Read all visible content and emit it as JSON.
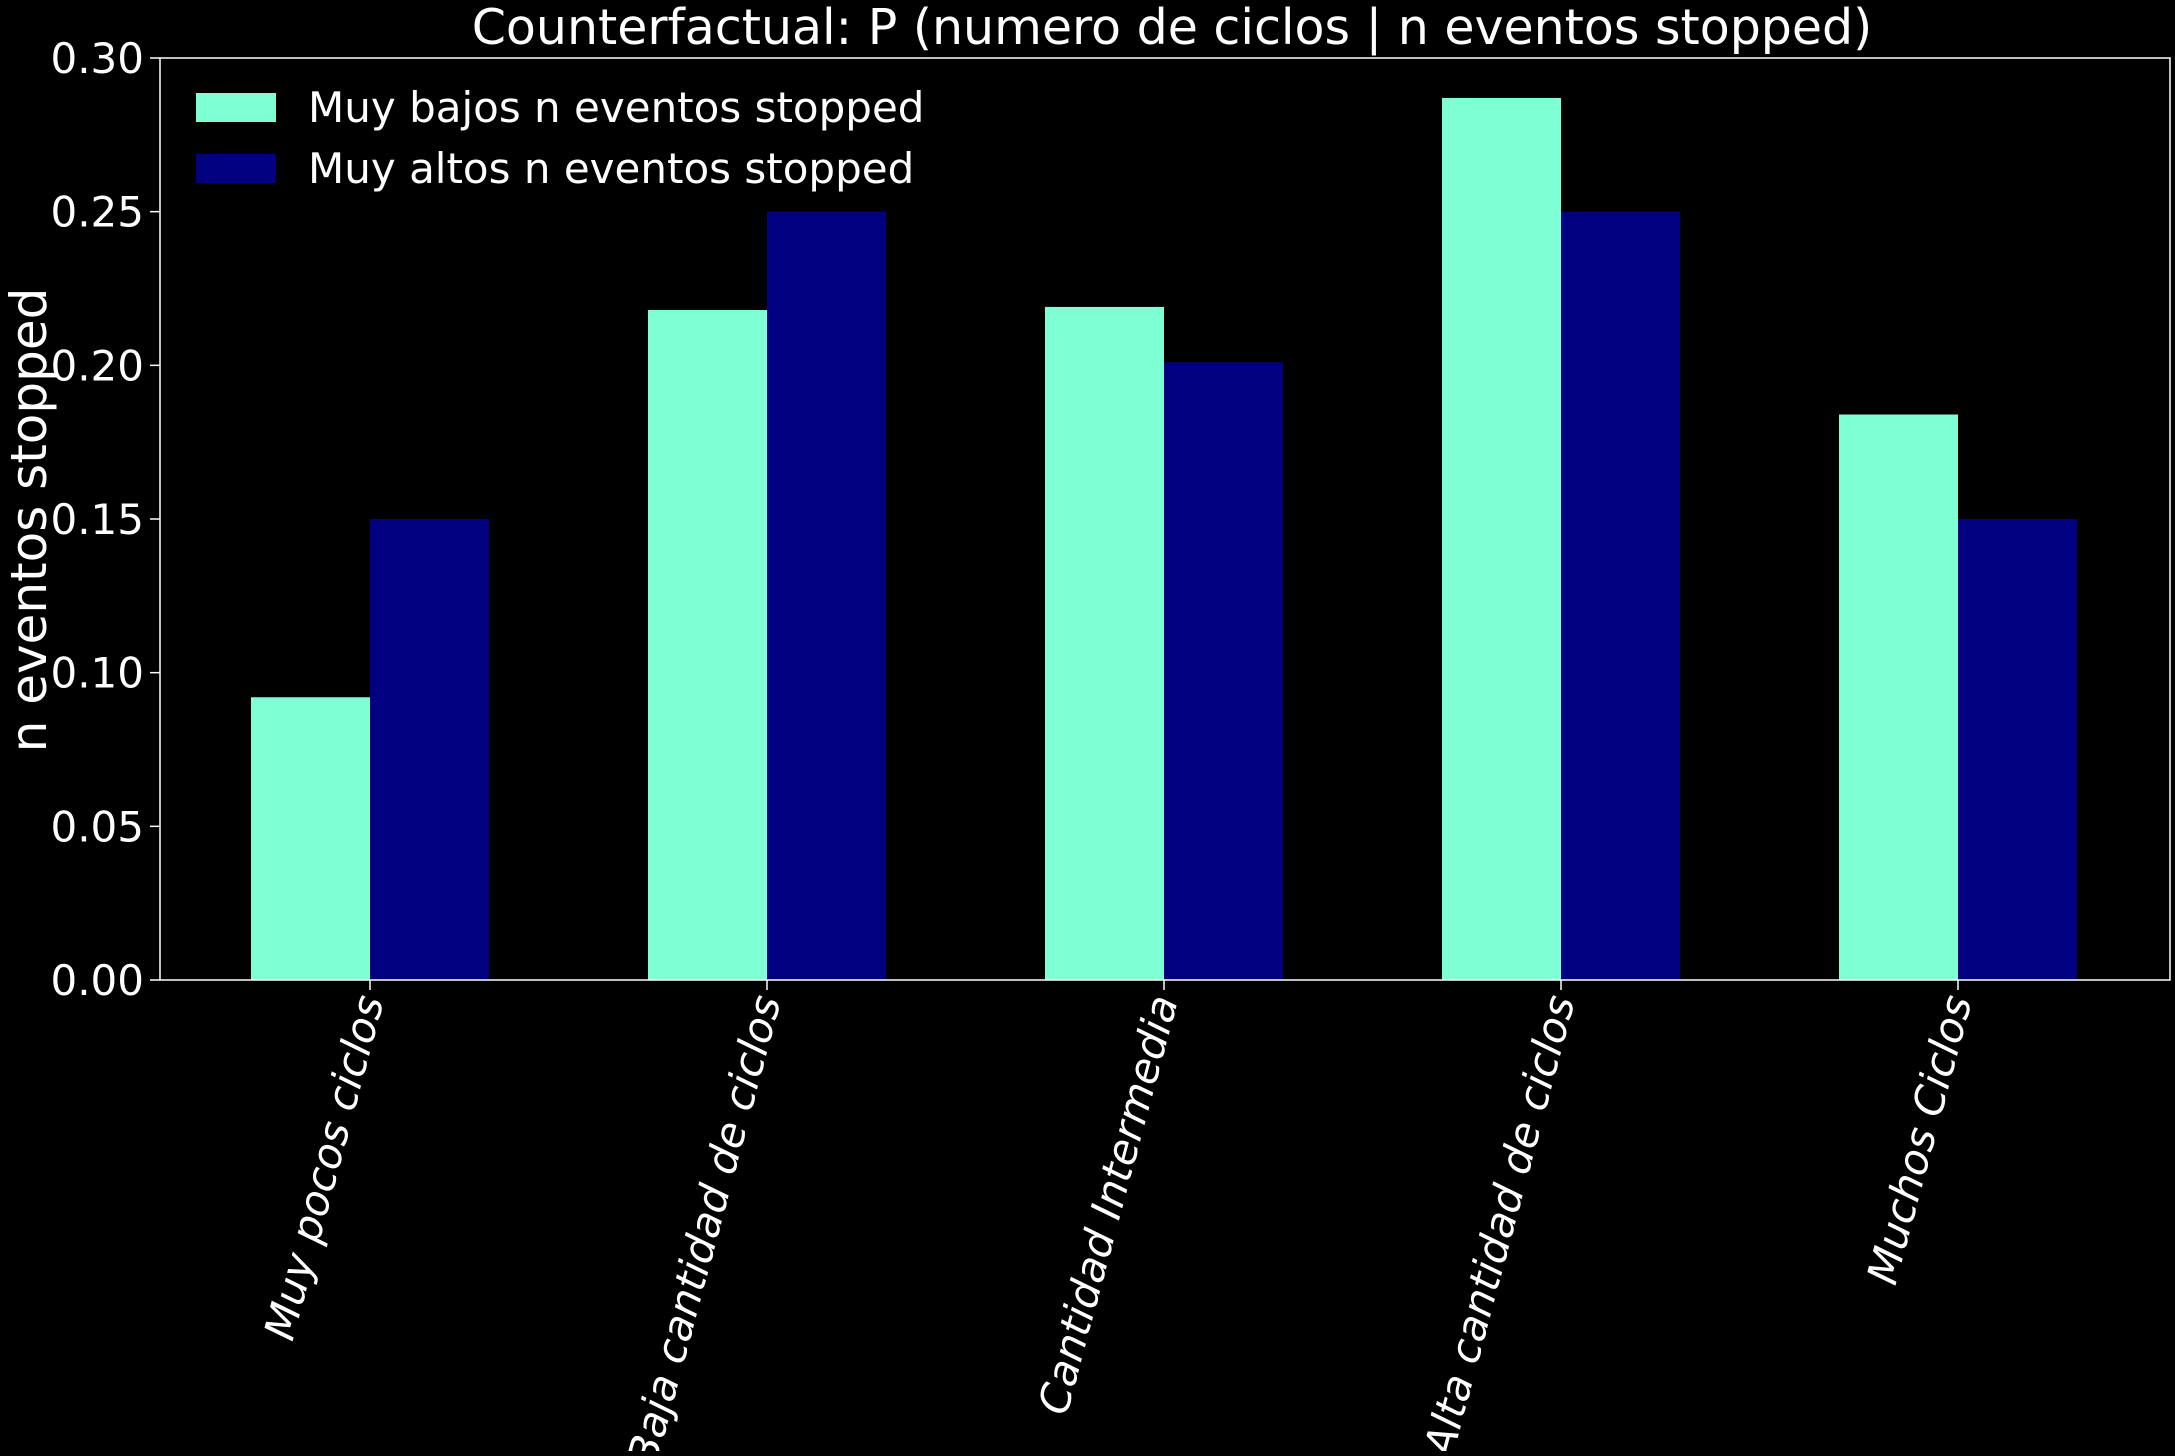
{
  "chart_data": {
    "type": "bar",
    "title": "Counterfactual: P (numero de ciclos | n eventos stopped)",
    "xlabel": "",
    "ylabel": "n eventos stopped",
    "categories": [
      "Muy pocos ciclos",
      "Baja cantidad de ciclos",
      "Cantidad Intermedia",
      "Alta cantidad de ciclos",
      "Muchos Ciclos"
    ],
    "series": [
      {
        "name": "Muy bajos n eventos stopped",
        "color": "#7fffd4",
        "values": [
          0.092,
          0.218,
          0.219,
          0.287,
          0.184
        ]
      },
      {
        "name": "Muy altos n eventos stopped",
        "color": "#000080",
        "values": [
          0.15,
          0.25,
          0.201,
          0.25,
          0.15
        ]
      }
    ],
    "ylim": [
      0,
      0.3
    ],
    "yticks": [
      "0.00",
      "0.05",
      "0.10",
      "0.15",
      "0.20",
      "0.25",
      "0.30"
    ],
    "xtick_rotation_deg": 75,
    "grid": false,
    "legend_position": "upper-left",
    "background_color": "#000000",
    "text_color": "#ffffff",
    "axis_color": "#ffffff"
  }
}
